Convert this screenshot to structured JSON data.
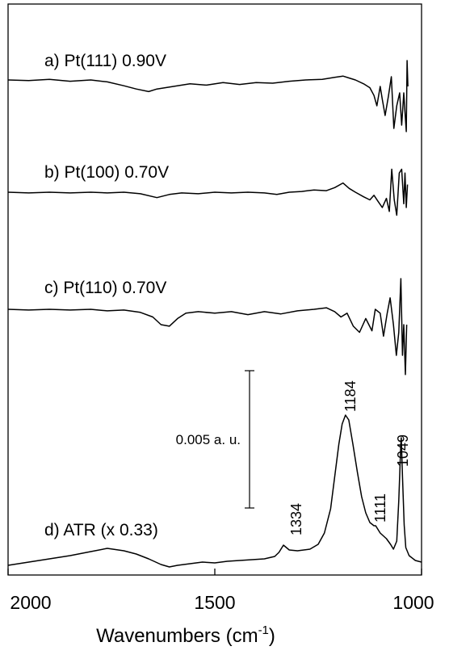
{
  "chart_data": {
    "type": "line",
    "title": "",
    "xlabel": "Wavenumbers (cm",
    "xlabel_sup": "-1",
    "xlabel_close": ")",
    "ylabel": "",
    "xlim": [
      2000,
      1000
    ],
    "x_ticks": [
      2000,
      1500,
      1000
    ],
    "x_tick_labels": [
      "2000",
      "1500",
      "1000"
    ],
    "grid": false,
    "scale_bar_label": "0.005 a. u.",
    "series": [
      {
        "name": "a) Pt(111) 0.90V",
        "points": [
          [
            2000,
            0
          ],
          [
            1950,
            -1
          ],
          [
            1900,
            1
          ],
          [
            1850,
            -2
          ],
          [
            1800,
            0
          ],
          [
            1760,
            -3
          ],
          [
            1720,
            -9
          ],
          [
            1690,
            -14
          ],
          [
            1660,
            -18
          ],
          [
            1640,
            -14
          ],
          [
            1600,
            -10
          ],
          [
            1560,
            -6
          ],
          [
            1520,
            -8
          ],
          [
            1480,
            -4
          ],
          [
            1440,
            -7
          ],
          [
            1400,
            -4
          ],
          [
            1360,
            -5
          ],
          [
            1320,
            -2
          ],
          [
            1280,
            0
          ],
          [
            1240,
            1
          ],
          [
            1210,
            4
          ],
          [
            1190,
            6
          ],
          [
            1175,
            3
          ],
          [
            1160,
            0
          ],
          [
            1140,
            -6
          ],
          [
            1125,
            -12
          ],
          [
            1115,
            -24
          ],
          [
            1108,
            -40
          ],
          [
            1100,
            -10
          ],
          [
            1095,
            -30
          ],
          [
            1088,
            -55
          ],
          [
            1080,
            -25
          ],
          [
            1073,
            5
          ],
          [
            1067,
            -75
          ],
          [
            1060,
            -40
          ],
          [
            1053,
            -20
          ],
          [
            1048,
            -70
          ],
          [
            1043,
            -20
          ],
          [
            1040,
            -50
          ],
          [
            1037,
            -80
          ],
          [
            1035,
            30
          ],
          [
            1033,
            -10
          ]
        ]
      },
      {
        "name": "b) Pt(100) 0.70V",
        "points": [
          [
            2000,
            0
          ],
          [
            1950,
            -1
          ],
          [
            1900,
            0
          ],
          [
            1850,
            -1
          ],
          [
            1800,
            0
          ],
          [
            1760,
            -1
          ],
          [
            1720,
            0
          ],
          [
            1680,
            -2
          ],
          [
            1640,
            -7
          ],
          [
            1610,
            -3
          ],
          [
            1580,
            -1
          ],
          [
            1540,
            -2
          ],
          [
            1500,
            0
          ],
          [
            1460,
            -1
          ],
          [
            1420,
            0
          ],
          [
            1380,
            -1
          ],
          [
            1350,
            -3
          ],
          [
            1320,
            0
          ],
          [
            1290,
            1
          ],
          [
            1260,
            3
          ],
          [
            1230,
            2
          ],
          [
            1210,
            6
          ],
          [
            1190,
            12
          ],
          [
            1175,
            5
          ],
          [
            1160,
            0
          ],
          [
            1140,
            -6
          ],
          [
            1125,
            -10
          ],
          [
            1115,
            -4
          ],
          [
            1105,
            -12
          ],
          [
            1095,
            -20
          ],
          [
            1085,
            -8
          ],
          [
            1078,
            -25
          ],
          [
            1072,
            30
          ],
          [
            1066,
            -10
          ],
          [
            1060,
            -30
          ],
          [
            1054,
            25
          ],
          [
            1048,
            30
          ],
          [
            1043,
            -15
          ],
          [
            1040,
            25
          ],
          [
            1037,
            -20
          ],
          [
            1034,
            10
          ]
        ]
      },
      {
        "name": "c) Pt(110) 0.70V",
        "points": [
          [
            2000,
            0
          ],
          [
            1950,
            -1
          ],
          [
            1900,
            0
          ],
          [
            1850,
            -1
          ],
          [
            1800,
            0
          ],
          [
            1760,
            -2
          ],
          [
            1720,
            -1
          ],
          [
            1680,
            -4
          ],
          [
            1650,
            -10
          ],
          [
            1630,
            -20
          ],
          [
            1610,
            -22
          ],
          [
            1590,
            -12
          ],
          [
            1570,
            -5
          ],
          [
            1540,
            -3
          ],
          [
            1500,
            -5
          ],
          [
            1460,
            -3
          ],
          [
            1420,
            -7
          ],
          [
            1380,
            -3
          ],
          [
            1340,
            -6
          ],
          [
            1300,
            -2
          ],
          [
            1260,
            0
          ],
          [
            1230,
            2
          ],
          [
            1210,
            -3
          ],
          [
            1195,
            -10
          ],
          [
            1180,
            -5
          ],
          [
            1165,
            -22
          ],
          [
            1150,
            -30
          ],
          [
            1135,
            -12
          ],
          [
            1120,
            -28
          ],
          [
            1112,
            0
          ],
          [
            1100,
            -5
          ],
          [
            1092,
            -35
          ],
          [
            1083,
            -5
          ],
          [
            1076,
            15
          ],
          [
            1068,
            -20
          ],
          [
            1061,
            -60
          ],
          [
            1055,
            -30
          ],
          [
            1050,
            40
          ],
          [
            1046,
            -60
          ],
          [
            1043,
            -20
          ],
          [
            1039,
            -85
          ],
          [
            1036,
            -20
          ]
        ]
      },
      {
        "name": "d) ATR (x 0.33)",
        "points": [
          [
            2000,
            0
          ],
          [
            1950,
            4
          ],
          [
            1900,
            8
          ],
          [
            1850,
            12
          ],
          [
            1800,
            17
          ],
          [
            1760,
            21
          ],
          [
            1720,
            18
          ],
          [
            1690,
            14
          ],
          [
            1660,
            8
          ],
          [
            1630,
            1
          ],
          [
            1610,
            -2
          ],
          [
            1590,
            0
          ],
          [
            1560,
            2
          ],
          [
            1530,
            4
          ],
          [
            1500,
            3
          ],
          [
            1470,
            5
          ],
          [
            1440,
            6
          ],
          [
            1410,
            7
          ],
          [
            1380,
            8
          ],
          [
            1355,
            11
          ],
          [
            1345,
            16
          ],
          [
            1334,
            25
          ],
          [
            1320,
            19
          ],
          [
            1300,
            18
          ],
          [
            1270,
            20
          ],
          [
            1250,
            26
          ],
          [
            1235,
            40
          ],
          [
            1220,
            70
          ],
          [
            1210,
            110
          ],
          [
            1200,
            150
          ],
          [
            1192,
            175
          ],
          [
            1184,
            186
          ],
          [
            1176,
            180
          ],
          [
            1166,
            150
          ],
          [
            1155,
            115
          ],
          [
            1145,
            85
          ],
          [
            1135,
            65
          ],
          [
            1125,
            53
          ],
          [
            1115,
            49
          ],
          [
            1111,
            49
          ],
          [
            1100,
            40
          ],
          [
            1085,
            33
          ],
          [
            1075,
            26
          ],
          [
            1068,
            20
          ],
          [
            1060,
            30
          ],
          [
            1055,
            80
          ],
          [
            1050,
            152
          ],
          [
            1049,
            158
          ],
          [
            1046,
            110
          ],
          [
            1042,
            50
          ],
          [
            1038,
            22
          ],
          [
            1030,
            12
          ],
          [
            1015,
            6
          ],
          [
            1000,
            4
          ]
        ]
      }
    ],
    "annotations": [
      "1334",
      "1184",
      "1111",
      "1049"
    ]
  }
}
